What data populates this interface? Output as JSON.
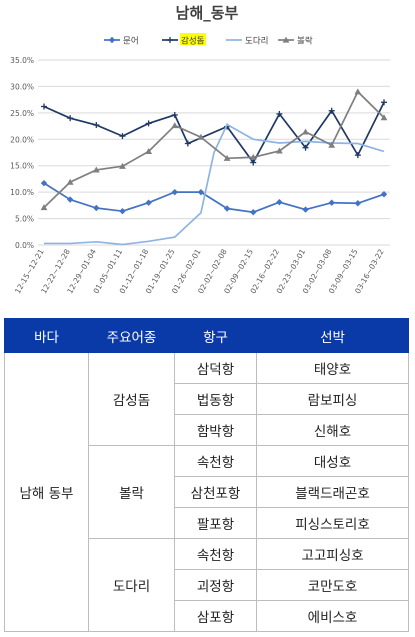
{
  "chart_data": {
    "type": "line",
    "title": "남해_동부",
    "highlighted_legend": "감성돔",
    "legend_position": "top",
    "grid": true,
    "ylim": [
      0,
      35
    ],
    "y_ticks": [
      "0.0%",
      "5.0%",
      "10.0%",
      "15.0%",
      "20.0%",
      "25.0%",
      "30.0%",
      "35.0%"
    ],
    "x_tick_labels": [
      "12-15~12-21",
      "12-22~12-28",
      "12-29~01-04",
      "01-05~01-11",
      "01-12~01-18",
      "01-19~01-25",
      "01-26~02-01",
      "02-02~02-08",
      "02-09~02-15",
      "02-16~02-22",
      "02-23~03-01",
      "03-02~03-08",
      "03-09~03-15",
      "03-16~03-22"
    ],
    "tick_positions": [
      0,
      2,
      4,
      6,
      8,
      10,
      12,
      14,
      16,
      18,
      20,
      22,
      24,
      26
    ],
    "n_points": 27,
    "series": [
      {
        "name": "문어",
        "color": "#4472c4",
        "marker": "diamond",
        "points": [
          [
            0,
            11.7
          ],
          [
            2,
            8.6
          ],
          [
            4,
            7.0
          ],
          [
            6,
            6.4
          ],
          [
            8,
            8.0
          ],
          [
            10,
            10.0
          ],
          [
            12,
            10.0
          ],
          [
            14,
            6.9
          ],
          [
            16,
            6.2
          ],
          [
            18,
            8.1
          ],
          [
            20,
            6.7
          ],
          [
            22,
            8.0
          ],
          [
            24,
            7.9
          ],
          [
            26,
            9.6
          ]
        ]
      },
      {
        "name": "감성돔",
        "color": "#1f3864",
        "marker": "plus",
        "points": [
          [
            0,
            26.2
          ],
          [
            2,
            24.0
          ],
          [
            4,
            22.7
          ],
          [
            6,
            20.6
          ],
          [
            8,
            23.0
          ],
          [
            10,
            24.6
          ],
          [
            11,
            19.2
          ],
          [
            14,
            22.4
          ],
          [
            16,
            15.6
          ],
          [
            18,
            24.8
          ],
          [
            20,
            18.4
          ],
          [
            22,
            25.4
          ],
          [
            24,
            17.0
          ],
          [
            26,
            27.0
          ]
        ]
      },
      {
        "name": "도다리",
        "color": "#8eb4e3",
        "marker": "none",
        "points": [
          [
            0,
            0.3
          ],
          [
            2,
            0.3
          ],
          [
            4,
            0.6
          ],
          [
            6,
            0.1
          ],
          [
            8,
            0.7
          ],
          [
            10,
            1.5
          ],
          [
            12,
            6.1
          ],
          [
            13,
            17.5
          ],
          [
            14,
            22.8
          ],
          [
            16,
            20.0
          ],
          [
            18,
            19.3
          ],
          [
            20,
            19.6
          ],
          [
            22,
            19.3
          ],
          [
            24,
            19.2
          ],
          [
            26,
            17.7
          ]
        ]
      },
      {
        "name": "볼락",
        "color": "#7f7f7f",
        "marker": "triangle",
        "points": [
          [
            0,
            7.1
          ],
          [
            2,
            11.9
          ],
          [
            4,
            14.2
          ],
          [
            6,
            14.9
          ],
          [
            8,
            17.7
          ],
          [
            10,
            22.6
          ],
          [
            12,
            20.4
          ],
          [
            14,
            16.4
          ],
          [
            16,
            16.6
          ],
          [
            18,
            17.8
          ],
          [
            20,
            21.4
          ],
          [
            22,
            18.9
          ],
          [
            24,
            29.0
          ],
          [
            26,
            24.1
          ]
        ]
      }
    ]
  },
  "table": {
    "headers": [
      "바다",
      "주요어종",
      "항구",
      "선박"
    ],
    "region": "남해 동부",
    "groups": [
      {
        "species": "감성돔",
        "rows": [
          [
            "삼덕항",
            "태양호"
          ],
          [
            "법동항",
            "람보피싱"
          ],
          [
            "함박항",
            "신해호"
          ]
        ]
      },
      {
        "species": "볼락",
        "rows": [
          [
            "속천항",
            "대성호"
          ],
          [
            "삼천포항",
            "블랙드래곤호"
          ],
          [
            "팔포항",
            "피싱스토리호"
          ]
        ]
      },
      {
        "species": "도다리",
        "rows": [
          [
            "속천항",
            "고고피싱호"
          ],
          [
            "괴정항",
            "코만도호"
          ],
          [
            "삼포항",
            "에비스호"
          ]
        ]
      }
    ]
  }
}
